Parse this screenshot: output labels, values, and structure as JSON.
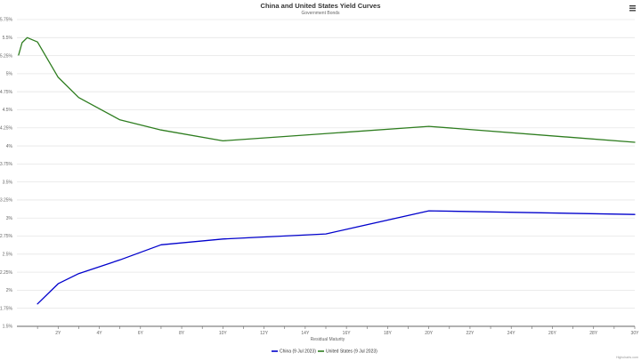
{
  "chart_data": {
    "type": "line",
    "title": "China and United States Yield Curves",
    "subtitle": "Government Bonds",
    "xlabel": "Residual Maturity",
    "ylabel": "",
    "xlim": [
      0,
      30
    ],
    "ylim": [
      1.5,
      5.75
    ],
    "x_tick_labels": [
      "2Y",
      "4Y",
      "6Y",
      "8Y",
      "10Y",
      "12Y",
      "14Y",
      "16Y",
      "18Y",
      "20Y",
      "22Y",
      "24Y",
      "26Y",
      "28Y",
      "30Y"
    ],
    "y_tick_labels": [
      "1.5%",
      "1.75%",
      "2%",
      "2.25%",
      "2.5%",
      "2.75%",
      "3%",
      "3.25%",
      "3.5%",
      "3.75%",
      "4%",
      "4.25%",
      "4.5%",
      "4.75%",
      "5%",
      "5.25%",
      "5.5%",
      "5.75%"
    ],
    "grid": "horizontal",
    "legend": "bottom-center",
    "series": [
      {
        "name": "China (9 Jul 2023)",
        "color": "#0000cc",
        "x": [
          1,
          2,
          3,
          5,
          7,
          10,
          15,
          20,
          30
        ],
        "y": [
          1.81,
          2.09,
          2.23,
          2.42,
          2.63,
          2.71,
          2.78,
          3.1,
          3.05
        ]
      },
      {
        "name": "United States (9 Jul 2023)",
        "color": "#2e7d1f",
        "x": [
          0.083,
          0.25,
          0.5,
          1,
          2,
          3,
          5,
          7,
          10,
          20,
          30
        ],
        "y": [
          5.26,
          5.43,
          5.5,
          5.44,
          4.95,
          4.67,
          4.36,
          4.22,
          4.07,
          4.27,
          4.05
        ]
      }
    ]
  },
  "credit": "Highcharts.com",
  "menu_icon": "hamburger-menu-icon"
}
